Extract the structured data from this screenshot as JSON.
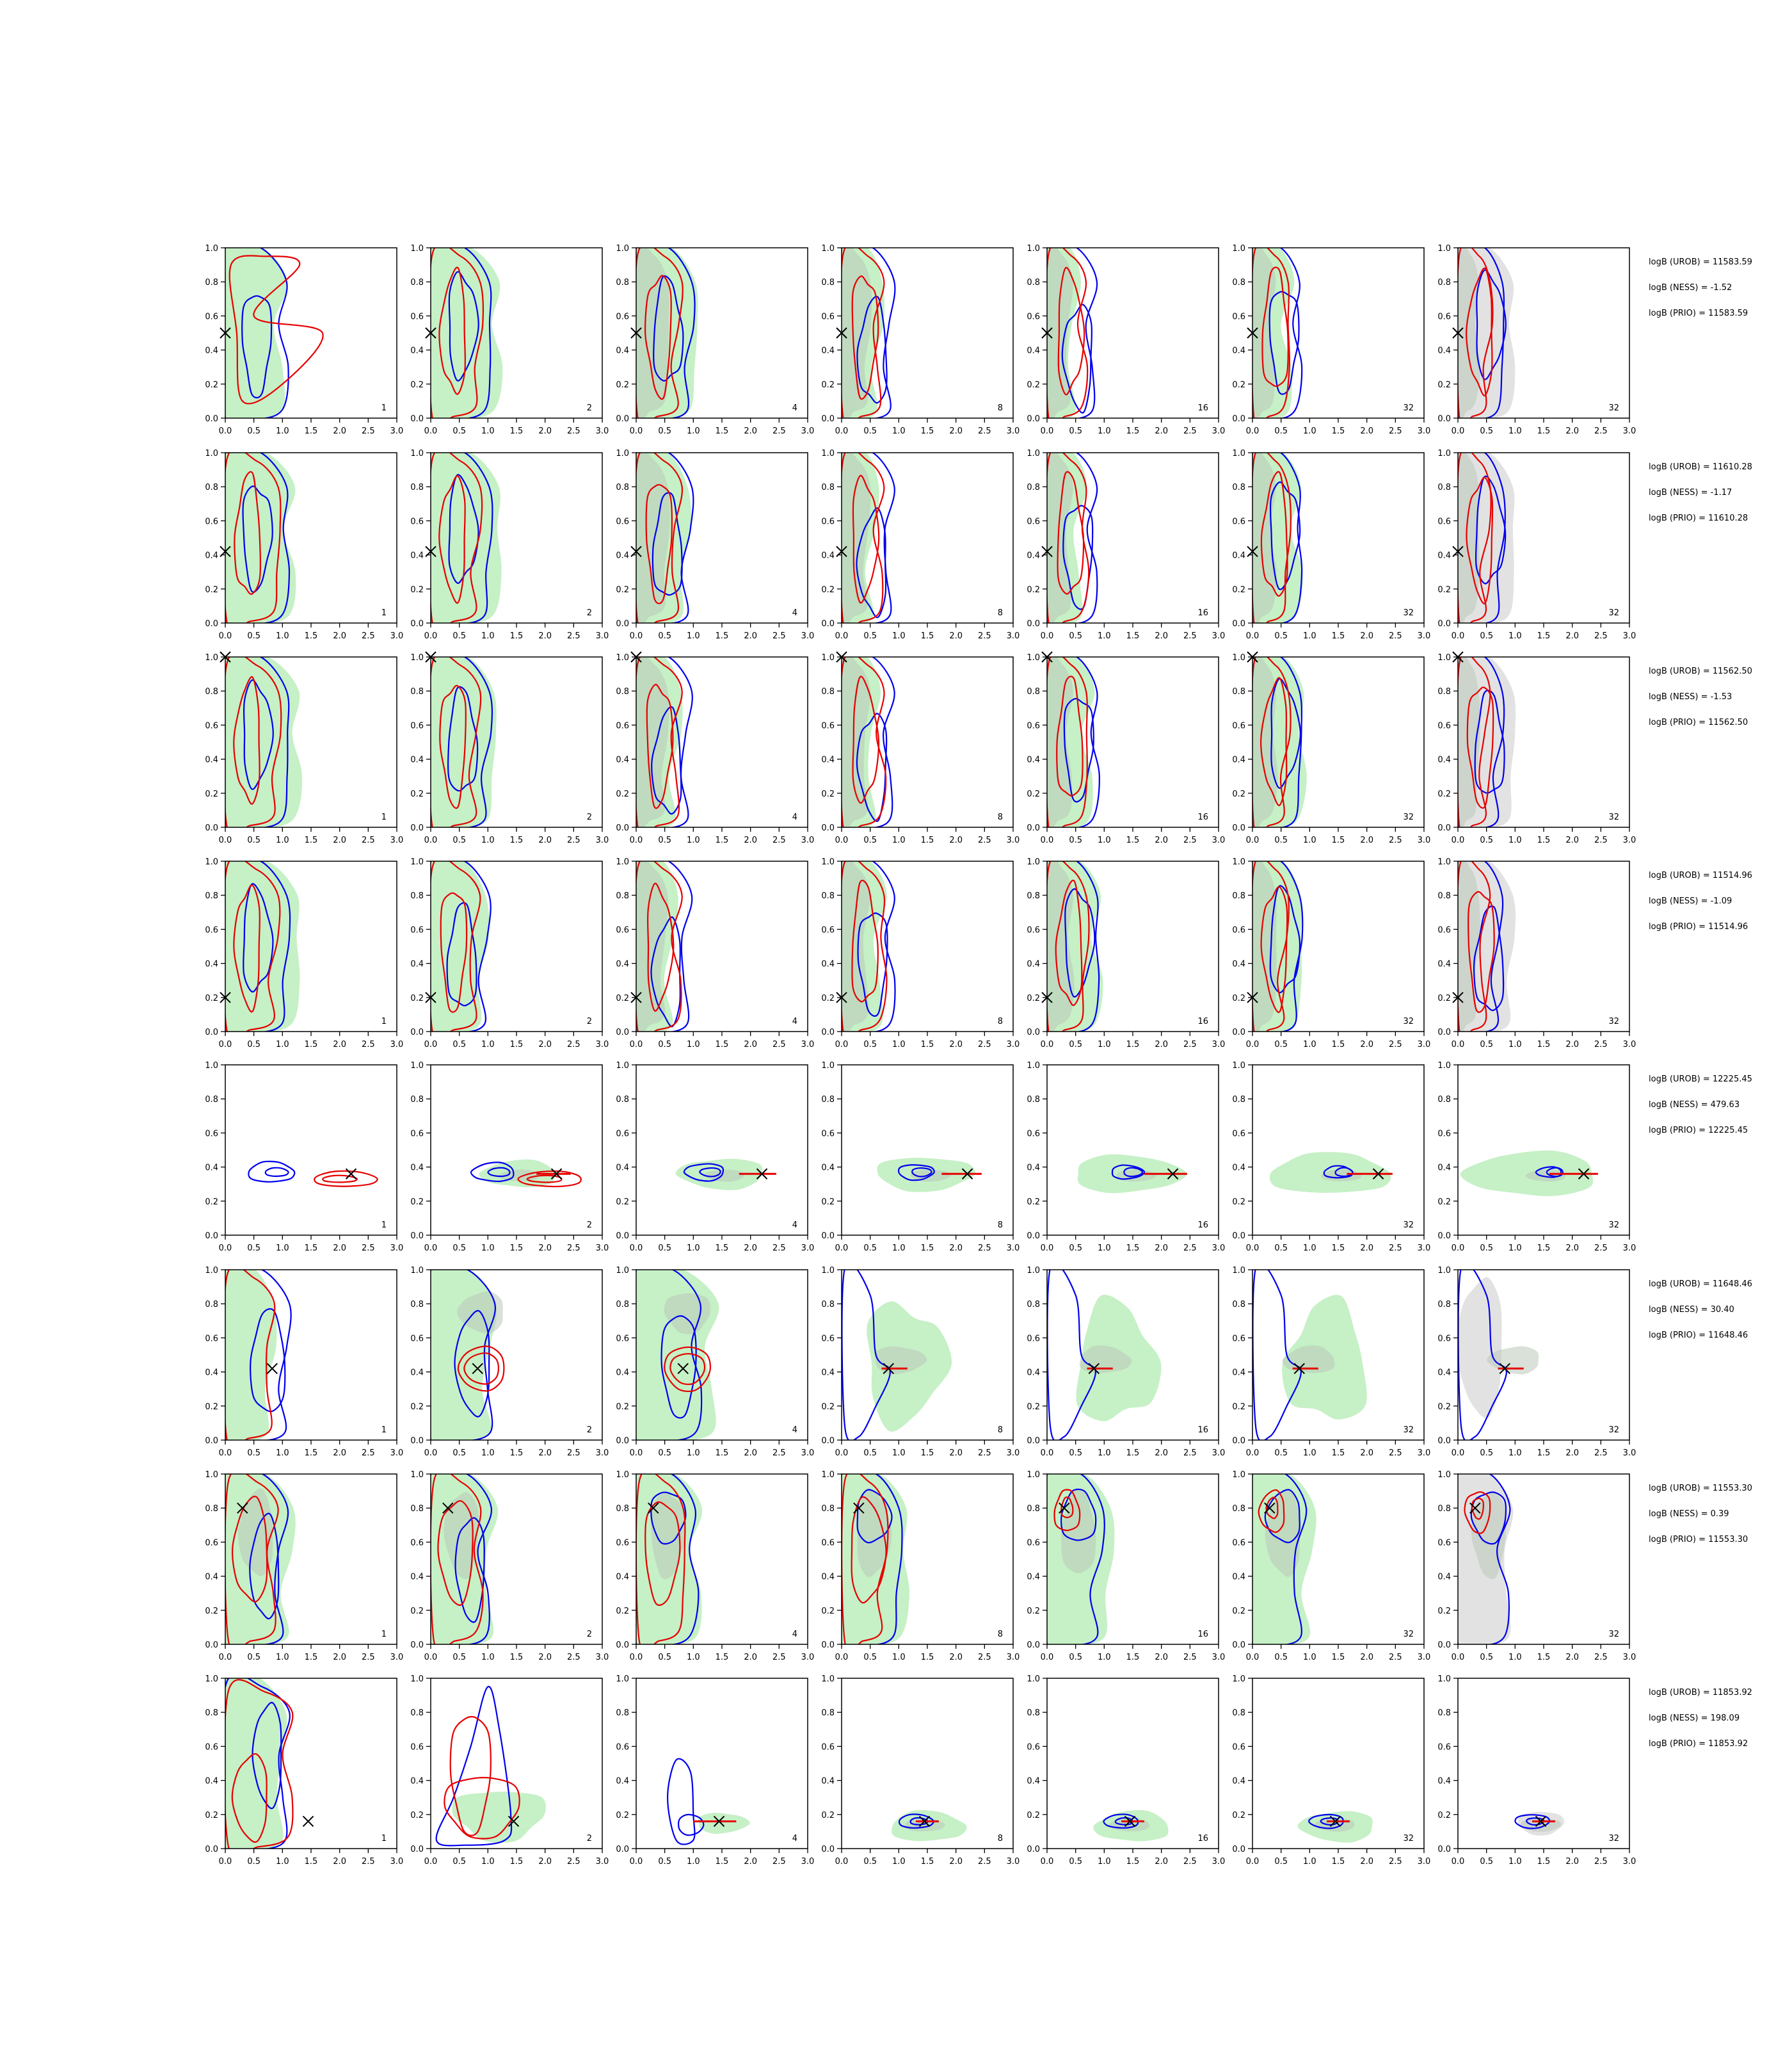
{
  "colors": {
    "unrob": "#0000ee",
    "ness": "#e60000",
    "prio_fill_outer": "#c6f0c6",
    "prio_fill_inner": "#b9c9b9",
    "gray_fill": "#e2e2e2",
    "axis": "#000000",
    "marker": "#000000"
  },
  "axes": {
    "x_ticks": [
      "0.0",
      "0.5",
      "1.0",
      "1.5",
      "2.0",
      "2.5",
      "3.0"
    ],
    "y_ticks": [
      "0.0",
      "0.2",
      "0.4",
      "0.6",
      "0.8",
      "1.0"
    ],
    "xlim": [
      0,
      3
    ],
    "ylim": [
      0,
      1
    ]
  },
  "panel_labels": [
    "1",
    "2",
    "4",
    "8",
    "16",
    "32",
    "32"
  ],
  "chart_data": {
    "type": "contour-grid",
    "rows": 8,
    "cols": 7,
    "xlim": [
      0,
      3
    ],
    "ylim": [
      0,
      1
    ],
    "grid": false,
    "panel_labels": [
      "1",
      "2",
      "4",
      "8",
      "16",
      "32",
      "32"
    ],
    "row_markers": [
      {
        "x": 0.0,
        "y": 0.5
      },
      {
        "x": 0.0,
        "y": 0.42
      },
      {
        "x": 0.0,
        "y": 1.0
      },
      {
        "x": 0.0,
        "y": 0.2
      },
      {
        "x": 2.2,
        "y": 0.36
      },
      {
        "x": 0.82,
        "y": 0.42
      },
      {
        "x": 0.3,
        "y": 0.8
      },
      {
        "x": 1.45,
        "y": 0.16
      }
    ],
    "row_annotations": [
      {
        "urob": "logB (UROB) = 11583.59",
        "ness": "logB (NESS) = -1.52",
        "prio": "logB (PRIO) = 11583.59"
      },
      {
        "urob": "logB (UROB) = 11610.28",
        "ness": "logB (NESS) = -1.17",
        "prio": "logB (PRIO) = 11610.28"
      },
      {
        "urob": "logB (UROB) = 11562.50",
        "ness": "logB (NESS) = -1.53",
        "prio": "logB (PRIO) = 11562.50"
      },
      {
        "urob": "logB (UROB) = 11514.96",
        "ness": "logB (NESS) = -1.09",
        "prio": "logB (PRIO) = 11514.96"
      },
      {
        "urob": "logB (UROB) = 12225.45",
        "ness": "logB (NESS) = 479.63",
        "prio": "logB (PRIO) = 12225.45"
      },
      {
        "urob": "logB (UROB) = 11648.46",
        "ness": "logB (NESS) = 30.40",
        "prio": "logB (PRIO) = 11648.46"
      },
      {
        "urob": "logB (UROB) = 11553.30",
        "ness": "logB (NESS) = 0.39",
        "prio": "logB (PRIO) = 11553.30"
      },
      {
        "urob": "logB (UROB) = 11853.92",
        "ness": "logB (NESS) = 198.09",
        "prio": "logB (PRIO) = 11853.92"
      }
    ]
  }
}
